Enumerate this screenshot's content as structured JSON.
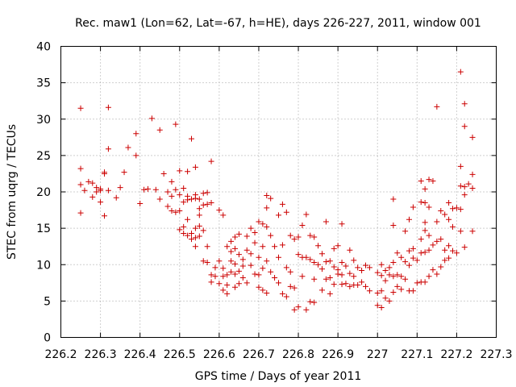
{
  "chart_data": {
    "type": "scatter",
    "title": "Rec. maw1 (Lon=62, Lat=-67, h=HE), days 226-227, 2011, window 001",
    "xlabel": "GPS time / Days of year 2011",
    "ylabel": "STEC from uqrg / TECUs",
    "xlim": [
      226.2,
      227.3
    ],
    "ylim": [
      0,
      40
    ],
    "x_ticks": [
      226.2,
      226.3,
      226.4,
      226.5,
      226.6,
      226.7,
      226.8,
      226.9,
      227.0,
      227.1,
      227.2,
      227.3
    ],
    "x_tick_labels": [
      "226.2",
      "226.3",
      "226.4",
      "226.5",
      "226.6",
      "226.7",
      "226.8",
      "226.9",
      "227",
      "227.1",
      "227.2",
      "227.3"
    ],
    "y_ticks": [
      0,
      5,
      10,
      15,
      20,
      25,
      30,
      35,
      40
    ],
    "y_tick_labels": [
      "0",
      "5",
      "10",
      "15",
      "20",
      "25",
      "30",
      "35",
      "40"
    ],
    "grid": true,
    "legend": "none",
    "marker": "+",
    "marker_color": "#cc0000",
    "points": [
      [
        226.25,
        31.5
      ],
      [
        226.25,
        23.2
      ],
      [
        226.25,
        21.0
      ],
      [
        226.25,
        17.1
      ],
      [
        226.26,
        20.2
      ],
      [
        226.27,
        21.4
      ],
      [
        226.28,
        21.2
      ],
      [
        226.28,
        19.3
      ],
      [
        226.29,
        20.6
      ],
      [
        226.29,
        20.0
      ],
      [
        226.3,
        18.6
      ],
      [
        226.3,
        20.4
      ],
      [
        226.3,
        20.2
      ],
      [
        226.31,
        22.7
      ],
      [
        226.31,
        22.5
      ],
      [
        226.31,
        16.7
      ],
      [
        226.32,
        31.6
      ],
      [
        226.32,
        25.9
      ],
      [
        226.32,
        20.2
      ],
      [
        226.34,
        19.2
      ],
      [
        226.35,
        20.6
      ],
      [
        226.36,
        22.7
      ],
      [
        226.37,
        26.1
      ],
      [
        226.39,
        28.0
      ],
      [
        226.39,
        25.0
      ],
      [
        226.4,
        18.4
      ],
      [
        226.41,
        20.3
      ],
      [
        226.42,
        20.4
      ],
      [
        226.43,
        30.1
      ],
      [
        226.44,
        20.3
      ],
      [
        226.45,
        28.5
      ],
      [
        226.45,
        19.0
      ],
      [
        226.46,
        22.5
      ],
      [
        226.47,
        20.0
      ],
      [
        226.47,
        18.0
      ],
      [
        226.48,
        17.4
      ],
      [
        226.48,
        19.4
      ],
      [
        226.48,
        21.4
      ],
      [
        226.49,
        29.3
      ],
      [
        226.49,
        20.3
      ],
      [
        226.49,
        17.2
      ],
      [
        226.5,
        22.9
      ],
      [
        226.5,
        19.6
      ],
      [
        226.5,
        17.4
      ],
      [
        226.5,
        14.8
      ],
      [
        226.51,
        20.5
      ],
      [
        226.51,
        18.6
      ],
      [
        226.51,
        15.2
      ],
      [
        226.51,
        14.3
      ],
      [
        226.52,
        22.8
      ],
      [
        226.52,
        19.4
      ],
      [
        226.52,
        18.9
      ],
      [
        226.52,
        16.2
      ],
      [
        226.52,
        14.0
      ],
      [
        226.53,
        27.3
      ],
      [
        226.53,
        19.0
      ],
      [
        226.53,
        14.3
      ],
      [
        226.53,
        13.5
      ],
      [
        226.54,
        23.4
      ],
      [
        226.54,
        19.6
      ],
      [
        226.54,
        19.1
      ],
      [
        226.54,
        15.0
      ],
      [
        226.54,
        13.7
      ],
      [
        226.54,
        12.5
      ],
      [
        226.55,
        19.0
      ],
      [
        226.55,
        17.7
      ],
      [
        226.55,
        16.8
      ],
      [
        226.55,
        15.3
      ],
      [
        226.55,
        13.9
      ],
      [
        226.56,
        19.8
      ],
      [
        226.56,
        18.2
      ],
      [
        226.56,
        14.7
      ],
      [
        226.56,
        10.5
      ],
      [
        226.57,
        19.9
      ],
      [
        226.57,
        18.3
      ],
      [
        226.57,
        12.5
      ],
      [
        226.57,
        10.3
      ],
      [
        226.58,
        24.2
      ],
      [
        226.58,
        18.5
      ],
      [
        226.58,
        8.6
      ],
      [
        226.58,
        7.6
      ],
      [
        226.59,
        9.6
      ],
      [
        226.59,
        8.4
      ],
      [
        226.6,
        17.5
      ],
      [
        226.6,
        10.5
      ],
      [
        226.6,
        7.4
      ],
      [
        226.61,
        16.8
      ],
      [
        226.61,
        9.5
      ],
      [
        226.61,
        8.4
      ],
      [
        226.61,
        6.5
      ],
      [
        226.62,
        12.5
      ],
      [
        226.62,
        8.6
      ],
      [
        226.62,
        7.2
      ],
      [
        226.62,
        6.0
      ],
      [
        226.63,
        13.2
      ],
      [
        226.63,
        11.8
      ],
      [
        226.63,
        10.5
      ],
      [
        226.63,
        9.0
      ],
      [
        226.64,
        13.8
      ],
      [
        226.64,
        12.2
      ],
      [
        226.64,
        10.1
      ],
      [
        226.64,
        8.7
      ],
      [
        226.64,
        6.9
      ],
      [
        226.65,
        14.2
      ],
      [
        226.65,
        11.4
      ],
      [
        226.65,
        9.1
      ],
      [
        226.65,
        7.4
      ],
      [
        226.66,
        10.7
      ],
      [
        226.66,
        9.8
      ],
      [
        226.66,
        8.2
      ],
      [
        226.67,
        13.9
      ],
      [
        226.67,
        12.0
      ],
      [
        226.67,
        7.5
      ],
      [
        226.68,
        15.0
      ],
      [
        226.68,
        11.5
      ],
      [
        226.68,
        9.9
      ],
      [
        226.69,
        14.4
      ],
      [
        226.69,
        13.0
      ],
      [
        226.69,
        8.7
      ],
      [
        226.7,
        15.9
      ],
      [
        226.7,
        11.0
      ],
      [
        226.7,
        8.6
      ],
      [
        226.7,
        6.9
      ],
      [
        226.71,
        15.6
      ],
      [
        226.71,
        12.5
      ],
      [
        226.71,
        9.5
      ],
      [
        226.71,
        6.5
      ],
      [
        226.72,
        19.5
      ],
      [
        226.72,
        17.8
      ],
      [
        226.72,
        15.2
      ],
      [
        226.72,
        10.5
      ],
      [
        226.72,
        6.1
      ],
      [
        226.73,
        19.1
      ],
      [
        226.73,
        14.0
      ],
      [
        226.73,
        9.0
      ],
      [
        226.74,
        12.5
      ],
      [
        226.74,
        8.2
      ],
      [
        226.75,
        16.8
      ],
      [
        226.75,
        11.0
      ],
      [
        226.75,
        7.5
      ],
      [
        226.76,
        18.3
      ],
      [
        226.76,
        12.7
      ],
      [
        226.76,
        6.0
      ],
      [
        226.77,
        17.2
      ],
      [
        226.77,
        9.6
      ],
      [
        226.77,
        5.6
      ],
      [
        226.78,
        14.0
      ],
      [
        226.78,
        9.0
      ],
      [
        226.78,
        7.0
      ],
      [
        226.79,
        13.5
      ],
      [
        226.79,
        6.8
      ],
      [
        226.79,
        3.8
      ],
      [
        226.8,
        13.8
      ],
      [
        226.8,
        11.4
      ],
      [
        226.8,
        4.2
      ],
      [
        226.81,
        15.4
      ],
      [
        226.81,
        11.0
      ],
      [
        226.81,
        8.4
      ],
      [
        226.82,
        16.9
      ],
      [
        226.82,
        11.0
      ],
      [
        226.82,
        3.8
      ],
      [
        226.83,
        14.0
      ],
      [
        226.83,
        10.7
      ],
      [
        226.83,
        4.9
      ],
      [
        226.84,
        13.8
      ],
      [
        226.84,
        10.3
      ],
      [
        226.84,
        8.0
      ],
      [
        226.84,
        4.8
      ],
      [
        226.85,
        12.6
      ],
      [
        226.85,
        10.0
      ],
      [
        226.86,
        11.5
      ],
      [
        226.86,
        9.4
      ],
      [
        226.86,
        6.5
      ],
      [
        226.87,
        15.9
      ],
      [
        226.87,
        10.4
      ],
      [
        226.87,
        8.0
      ],
      [
        226.88,
        10.5
      ],
      [
        226.88,
        8.2
      ],
      [
        226.88,
        6.0
      ],
      [
        226.89,
        12.2
      ],
      [
        226.89,
        9.7
      ],
      [
        226.89,
        7.3
      ],
      [
        226.9,
        12.6
      ],
      [
        226.9,
        9.3
      ],
      [
        226.9,
        8.7
      ],
      [
        226.91,
        15.6
      ],
      [
        226.91,
        10.3
      ],
      [
        226.91,
        8.6
      ],
      [
        226.91,
        7.3
      ],
      [
        226.92,
        9.8
      ],
      [
        226.92,
        7.4
      ],
      [
        226.93,
        12.0
      ],
      [
        226.93,
        8.8
      ],
      [
        226.93,
        7.0
      ],
      [
        226.94,
        10.6
      ],
      [
        226.94,
        8.4
      ],
      [
        226.94,
        7.2
      ],
      [
        226.95,
        9.6
      ],
      [
        226.95,
        7.2
      ],
      [
        226.96,
        9.2
      ],
      [
        226.96,
        7.6
      ],
      [
        226.97,
        9.9
      ],
      [
        226.97,
        7.0
      ],
      [
        226.98,
        9.6
      ],
      [
        226.98,
        6.4
      ],
      [
        227.0,
        8.9
      ],
      [
        227.0,
        6.1
      ],
      [
        227.0,
        4.4
      ],
      [
        227.01,
        10.0
      ],
      [
        227.01,
        8.5
      ],
      [
        227.01,
        6.4
      ],
      [
        227.01,
        4.1
      ],
      [
        227.02,
        9.2
      ],
      [
        227.02,
        7.8
      ],
      [
        227.02,
        5.4
      ],
      [
        227.03,
        9.6
      ],
      [
        227.03,
        8.6
      ],
      [
        227.03,
        5.0
      ],
      [
        227.04,
        19.0
      ],
      [
        227.04,
        15.4
      ],
      [
        227.04,
        10.3
      ],
      [
        227.04,
        8.4
      ],
      [
        227.04,
        6.2
      ],
      [
        227.05,
        11.6
      ],
      [
        227.05,
        8.6
      ],
      [
        227.05,
        7.0
      ],
      [
        227.06,
        11.0
      ],
      [
        227.06,
        8.4
      ],
      [
        227.06,
        6.6
      ],
      [
        227.07,
        14.6
      ],
      [
        227.07,
        10.4
      ],
      [
        227.07,
        8.0
      ],
      [
        227.08,
        16.2
      ],
      [
        227.08,
        11.9
      ],
      [
        227.08,
        9.9
      ],
      [
        227.08,
        6.4
      ],
      [
        227.09,
        17.9
      ],
      [
        227.09,
        12.2
      ],
      [
        227.09,
        10.9
      ],
      [
        227.09,
        6.4
      ],
      [
        227.1,
        10.6
      ],
      [
        227.1,
        7.5
      ],
      [
        227.11,
        21.5
      ],
      [
        227.11,
        18.6
      ],
      [
        227.11,
        13.5
      ],
      [
        227.11,
        11.6
      ],
      [
        227.11,
        7.6
      ],
      [
        227.12,
        20.4
      ],
      [
        227.12,
        18.5
      ],
      [
        227.12,
        15.8
      ],
      [
        227.12,
        14.7
      ],
      [
        227.12,
        11.7
      ],
      [
        227.12,
        7.6
      ],
      [
        227.13,
        21.7
      ],
      [
        227.13,
        17.9
      ],
      [
        227.13,
        14.0
      ],
      [
        227.13,
        12.0
      ],
      [
        227.13,
        8.4
      ],
      [
        227.14,
        21.5
      ],
      [
        227.14,
        12.7
      ],
      [
        227.14,
        9.3
      ],
      [
        227.15,
        31.7
      ],
      [
        227.15,
        15.9
      ],
      [
        227.15,
        13.2
      ],
      [
        227.15,
        8.7
      ],
      [
        227.16,
        17.4
      ],
      [
        227.16,
        13.5
      ],
      [
        227.16,
        9.7
      ],
      [
        227.17,
        16.9
      ],
      [
        227.17,
        12.0
      ],
      [
        227.17,
        10.6
      ],
      [
        227.18,
        18.5
      ],
      [
        227.18,
        16.2
      ],
      [
        227.18,
        12.6
      ],
      [
        227.18,
        10.9
      ],
      [
        227.19,
        17.7
      ],
      [
        227.19,
        15.2
      ],
      [
        227.19,
        11.9
      ],
      [
        227.2,
        17.8
      ],
      [
        227.2,
        11.6
      ],
      [
        227.21,
        36.5
      ],
      [
        227.21,
        23.5
      ],
      [
        227.21,
        20.8
      ],
      [
        227.21,
        17.6
      ],
      [
        227.21,
        14.6
      ],
      [
        227.22,
        32.1
      ],
      [
        227.22,
        29.0
      ],
      [
        227.22,
        20.7
      ],
      [
        227.22,
        19.6
      ],
      [
        227.22,
        12.4
      ],
      [
        227.23,
        21.1
      ],
      [
        227.24,
        27.5
      ],
      [
        227.24,
        22.4
      ],
      [
        227.24,
        20.5
      ],
      [
        227.24,
        14.6
      ]
    ]
  }
}
